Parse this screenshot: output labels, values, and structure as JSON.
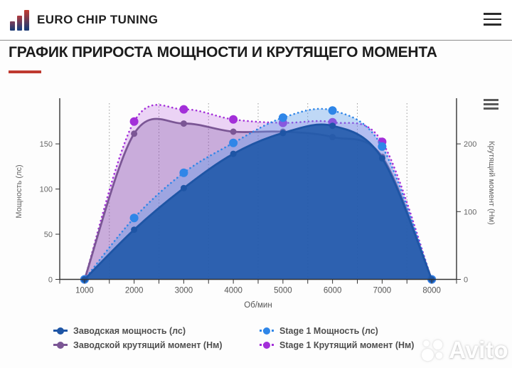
{
  "header": {
    "brand": "EURO CHIP TUNING",
    "menu_icon": "hamburger-icon"
  },
  "page": {
    "title": "ГРАФИК ПРИРОСТА МОЩНОСТИ И КРУТЯЩЕГО МОМЕНТА",
    "accent_color": "#bf3a30"
  },
  "chart_data": {
    "type": "area",
    "x": [
      1000,
      2000,
      3000,
      4000,
      5000,
      6000,
      7000,
      8000
    ],
    "xlabel": "Об/мин",
    "x_range": [
      500,
      8500
    ],
    "x_label_step": 1000,
    "minor_tick_step": 500,
    "gridlines_x": [
      1500,
      2500,
      3500,
      4500,
      5500,
      6500,
      7500
    ],
    "grid_style": "dotted-vertical",
    "left_axis": {
      "label": "Мощность (лс)",
      "ticks": [
        0,
        50,
        100,
        150
      ],
      "range": [
        0,
        195
      ]
    },
    "right_axis": {
      "label": "Крутящий момент (Нм)",
      "ticks": [
        0,
        100,
        200
      ],
      "range": [
        0,
        260
      ]
    },
    "legend_position": "bottom",
    "series": [
      {
        "name": "Заводская мощность (лс)",
        "axis": "left",
        "dash": "solid",
        "color": "#1e55a5",
        "fill": "rgba(30,88,168,0.88)",
        "marker_r": 4.5,
        "values": [
          0,
          55,
          101,
          139,
          162,
          170,
          134,
          0
        ]
      },
      {
        "name": "Stage 1 Мощность (лс)",
        "axis": "left",
        "dash": "dot",
        "color": "#2f86e8",
        "fill": "rgba(90,156,235,0.38)",
        "marker_r": 6,
        "values": [
          0,
          68,
          118,
          151,
          179,
          187,
          147,
          0
        ]
      },
      {
        "name": "Заводской крутящий момент (Нм)",
        "axis": "right",
        "dash": "solid",
        "color": "#7b5695",
        "fill": "rgba(124,82,158,0.30)",
        "marker_r": 4.5,
        "values": [
          0,
          215,
          230,
          218,
          218,
          210,
          181,
          0
        ]
      },
      {
        "name": "Stage 1 Крутящий момент (Нм)",
        "axis": "right",
        "dash": "dot",
        "color": "#a32fd9",
        "fill": "rgba(163,47,217,0.20)",
        "marker_r": 6,
        "values": [
          0,
          233,
          251,
          236,
          231,
          232,
          203,
          0
        ]
      }
    ]
  },
  "watermark": {
    "text": "Avito",
    "logo_icon": "avito-circles-icon"
  },
  "icons": {
    "header_menu": "hamburger-icon",
    "chart_menu": "chart-context-menu-icon",
    "brand_logo": "bar-chart-logo-icon"
  }
}
